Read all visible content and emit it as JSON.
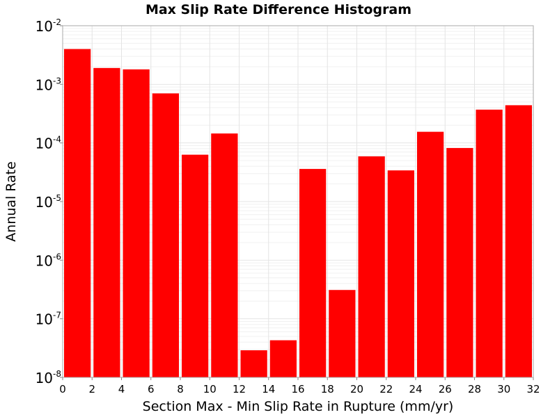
{
  "chart_data": {
    "type": "bar",
    "title": "Max Slip Rate Difference Histogram",
    "xlabel": "Section Max - Min Slip Rate in Rupture (mm/yr)",
    "ylabel": "Annual Rate",
    "y_scale": "log",
    "xlim": [
      0,
      32
    ],
    "ylim": [
      1e-08,
      0.01
    ],
    "x_ticks": [
      "0",
      "2",
      "4",
      "6",
      "8",
      "10",
      "12",
      "14",
      "16",
      "18",
      "20",
      "22",
      "24",
      "26",
      "28",
      "30",
      "32"
    ],
    "y_ticks": [
      {
        "base": "10",
        "exp": "-8",
        "value": 1e-08
      },
      {
        "base": "10",
        "exp": "-7",
        "value": 1e-07
      },
      {
        "base": "10",
        "exp": "-6",
        "value": 1e-06
      },
      {
        "base": "10",
        "exp": "-5",
        "value": 1e-05
      },
      {
        "base": "10",
        "exp": "-4",
        "value": 0.0001
      },
      {
        "base": "10",
        "exp": "-3",
        "value": 0.001
      },
      {
        "base": "10",
        "exp": "-2",
        "value": 0.01
      }
    ],
    "bin_width": 2,
    "bins": [
      {
        "x": 1,
        "value": 0.004
      },
      {
        "x": 3,
        "value": 0.0019
      },
      {
        "x": 5,
        "value": 0.0018
      },
      {
        "x": 7,
        "value": 0.0007
      },
      {
        "x": 9,
        "value": 6.3e-05
      },
      {
        "x": 11,
        "value": 0.000145
      },
      {
        "x": 13,
        "value": 2.9e-08
      },
      {
        "x": 15,
        "value": 4.3e-08
      },
      {
        "x": 17,
        "value": 3.6e-05
      },
      {
        "x": 19,
        "value": 3.1e-07
      },
      {
        "x": 21,
        "value": 5.9e-05
      },
      {
        "x": 23,
        "value": 3.4e-05
      },
      {
        "x": 25,
        "value": 0.000155
      },
      {
        "x": 27,
        "value": 8.2e-05
      },
      {
        "x": 29,
        "value": 0.00037
      },
      {
        "x": 31,
        "value": 0.00044
      }
    ],
    "bar_color": "#ff0000",
    "grid": true
  }
}
